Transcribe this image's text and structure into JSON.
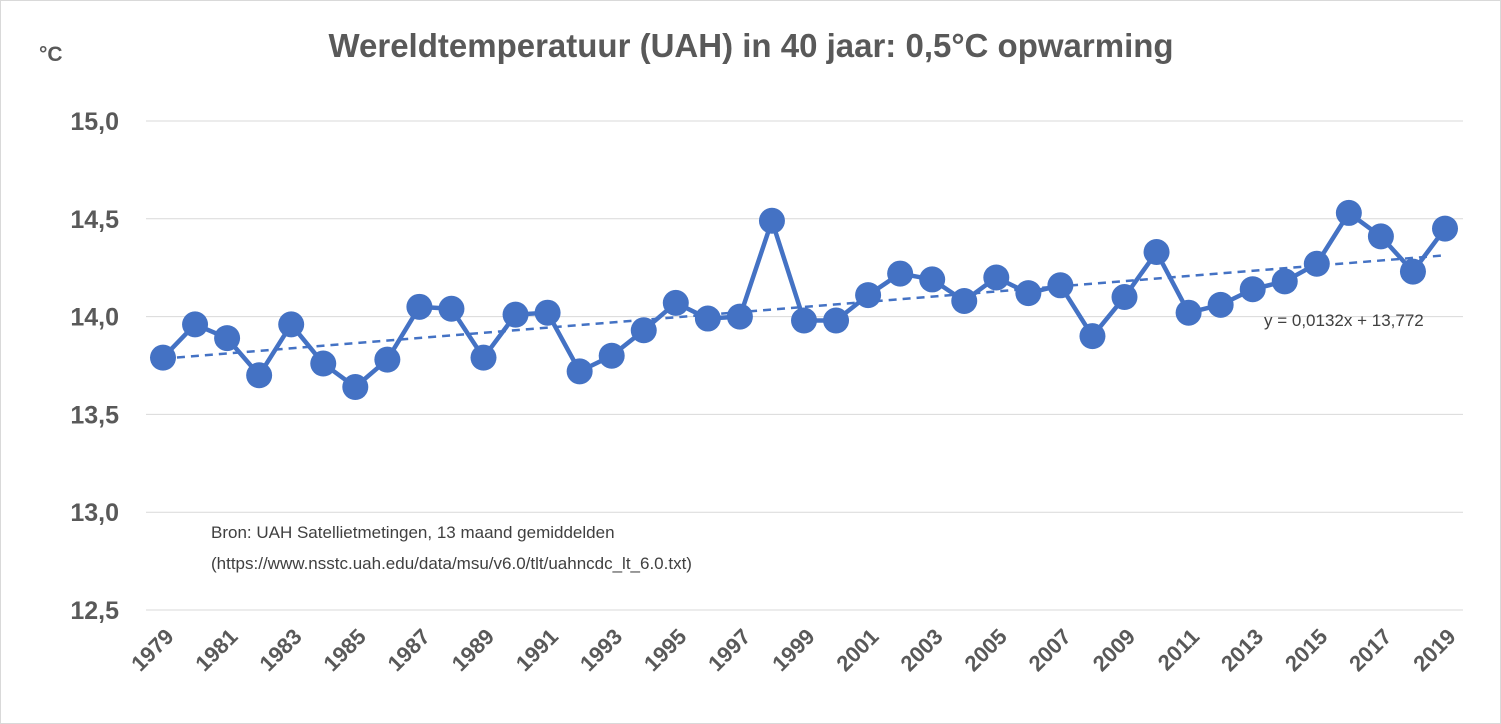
{
  "chart_data": {
    "type": "line",
    "title": "Wereldtemperatuur (UAH) in 40 jaar: 0,5°C opwarming",
    "ylabel": "°C",
    "xlabel": "",
    "ylim": [
      12.5,
      15.0
    ],
    "yticks": [
      "15,0",
      "14,5",
      "14,0",
      "13,5",
      "13,0",
      "12,5"
    ],
    "ytick_values": [
      15.0,
      14.5,
      14.0,
      13.5,
      13.0,
      12.5
    ],
    "xticks": [
      "1979",
      "1981",
      "1983",
      "1985",
      "1987",
      "1989",
      "1991",
      "1993",
      "1995",
      "1997",
      "1999",
      "2001",
      "2003",
      "2005",
      "2007",
      "2009",
      "2011",
      "2013",
      "2015",
      "2017",
      "2019"
    ],
    "grid": true,
    "legend": "none",
    "series": [
      {
        "color": "#4472c4",
        "x": [
          1979,
          1980,
          1981,
          1982,
          1983,
          1984,
          1985,
          1986,
          1987,
          1988,
          1989,
          1990,
          1991,
          1992,
          1993,
          1994,
          1995,
          1996,
          1997,
          1998,
          1999,
          2000,
          2001,
          2002,
          2003,
          2004,
          2005,
          2006,
          2007,
          2008,
          2009,
          2010,
          2011,
          2012,
          2013,
          2014,
          2015,
          2016,
          2017,
          2018,
          2019
        ],
        "y": [
          13.79,
          13.96,
          13.89,
          13.7,
          13.96,
          13.76,
          13.64,
          13.78,
          14.05,
          14.04,
          13.79,
          14.01,
          14.02,
          13.72,
          13.8,
          13.93,
          14.07,
          13.99,
          14.0,
          14.49,
          13.98,
          13.98,
          14.11,
          14.22,
          14.19,
          14.08,
          14.2,
          14.12,
          14.16,
          13.9,
          14.1,
          14.33,
          14.02,
          14.06,
          14.14,
          14.18,
          14.27,
          14.53,
          14.41,
          14.23,
          14.45
        ]
      }
    ],
    "trendline": {
      "equation": "y = 0,0132x + 13,772",
      "slope": 0.0132,
      "intercept": 13.772,
      "style": "dashed",
      "color": "#4472c4"
    },
    "annotations": [
      "Bron: UAH Satellietmetingen, 13 maand gemiddelden",
      "(https://www.nsstc.uah.edu/data/msu/v6.0/tlt/uahncdc_lt_6.0.txt)"
    ]
  }
}
